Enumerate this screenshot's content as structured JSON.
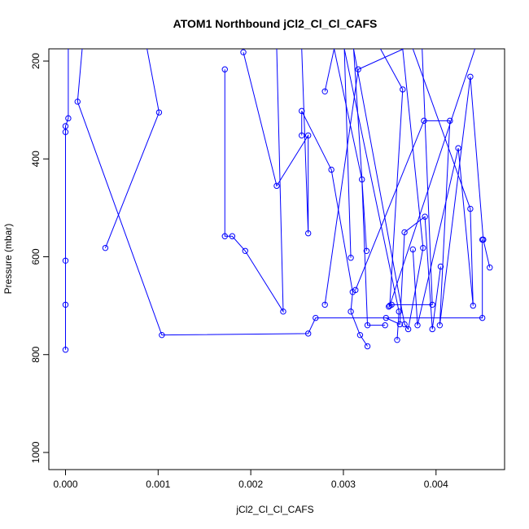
{
  "chart_data": {
    "type": "line",
    "title": "ATOM1 Northbound jCl2_Cl_Cl_CAFS",
    "xlabel": "jCl2_Cl_Cl_CAFS",
    "ylabel": "Pressure (mbar)",
    "xlim": [
      -0.00018,
      0.00474
    ],
    "ylim": [
      1035,
      175
    ],
    "y_reversed": true,
    "x_ticks": [
      0.0,
      0.001,
      0.002,
      0.003,
      0.004
    ],
    "x_tick_labels": [
      "0.000",
      "0.001",
      "0.002",
      "0.003",
      "0.004"
    ],
    "y_ticks": [
      200,
      400,
      600,
      800,
      1000
    ],
    "y_tick_labels": [
      "200",
      "400",
      "600",
      "800",
      "1000"
    ],
    "grid": false,
    "legend": "none",
    "color": "#0000ff",
    "marker": "open-circle",
    "series": [
      {
        "values": [
          [
            0.0,
            790
          ],
          [
            0.0,
            698
          ],
          [
            0.0,
            608
          ],
          [
            0.0,
            345
          ],
          [
            0.0,
            333
          ],
          [
            3e-05,
            317
          ],
          [
            3e-05,
            175
          ]
        ]
      },
      {
        "values": [
          [
            0.00018,
            175
          ],
          [
            0.00013,
            283
          ],
          [
            0.00104,
            760
          ],
          [
            0.00262,
            757
          ],
          [
            0.0027,
            725
          ],
          [
            0.0045,
            725
          ],
          [
            0.0045,
            565
          ]
        ]
      },
      {
        "values": [
          [
            0.00043,
            582
          ],
          [
            0.00101,
            305
          ],
          [
            0.00088,
            175
          ]
        ]
      },
      {
        "values": [
          [
            0.00172,
            217
          ],
          [
            0.00172,
            558
          ],
          [
            0.0018,
            558
          ],
          [
            0.00194,
            588
          ],
          [
            0.00235,
            712
          ],
          [
            0.00228,
            175
          ]
        ]
      },
      {
        "values": [
          [
            0.00192,
            182
          ],
          [
            0.00228,
            455
          ],
          [
            0.00262,
            352
          ],
          [
            0.00262,
            552
          ],
          [
            0.00255,
            175
          ]
        ]
      },
      {
        "values": [
          [
            0.00255,
            352
          ],
          [
            0.00255,
            302
          ],
          [
            0.00287,
            422
          ],
          [
            0.0031,
            672
          ],
          [
            0.00308,
            712
          ],
          [
            0.00318,
            760
          ],
          [
            0.00326,
            783
          ]
        ]
      },
      {
        "values": [
          [
            0.0028,
            262
          ],
          [
            0.0029,
            175
          ],
          [
            0.0032,
            442
          ],
          [
            0.00326,
            740
          ],
          [
            0.00345,
            740
          ]
        ]
      },
      {
        "values": [
          [
            0.0028,
            698
          ],
          [
            0.00316,
            217
          ],
          [
            0.00365,
            175
          ]
        ]
      },
      {
        "values": [
          [
            0.00308,
            602
          ],
          [
            0.00301,
            175
          ],
          [
            0.0036,
            712
          ],
          [
            0.00358,
            770
          ]
        ]
      },
      {
        "values": [
          [
            0.00325,
            588
          ],
          [
            0.00311,
            175
          ],
          [
            0.00366,
            738
          ],
          [
            0.0037,
            748
          ],
          [
            0.00386,
            582
          ],
          [
            0.00364,
            175
          ]
        ]
      },
      {
        "values": [
          [
            0.00313,
            668
          ],
          [
            0.00387,
            322
          ],
          [
            0.00415,
            322
          ],
          [
            0.00404,
            740
          ],
          [
            0.00437,
            232
          ],
          [
            0.00451,
            565
          ],
          [
            0.00458,
            622
          ]
        ]
      },
      {
        "values": [
          [
            0.00346,
            725
          ],
          [
            0.00361,
            738
          ],
          [
            0.00366,
            550
          ],
          [
            0.00388,
            518
          ],
          [
            0.00396,
            748
          ],
          [
            0.00405,
            620
          ]
        ]
      },
      {
        "values": [
          [
            0.00349,
            702
          ],
          [
            0.00352,
            698
          ],
          [
            0.00396,
            698
          ],
          [
            0.00385,
            175
          ]
        ]
      },
      {
        "values": [
          [
            0.00375,
            585
          ],
          [
            0.0038,
            740
          ],
          [
            0.00424,
            378
          ],
          [
            0.0044,
            700
          ],
          [
            0.00437,
            502
          ],
          [
            0.00375,
            175
          ]
        ]
      },
      {
        "values": [
          [
            0.0034,
            175
          ],
          [
            0.00364,
            258
          ],
          [
            0.0035,
            700
          ],
          [
            0.00442,
            175
          ]
        ]
      }
    ]
  }
}
